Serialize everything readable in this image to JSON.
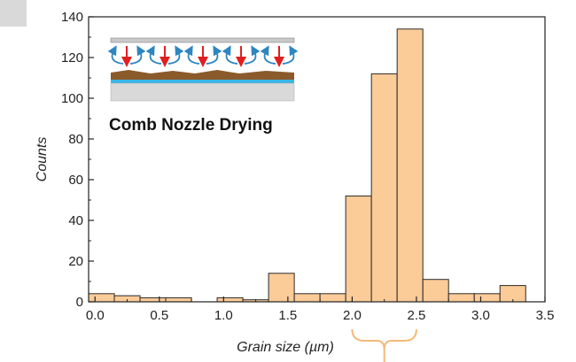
{
  "chart_data": {
    "type": "bar",
    "title": "",
    "xlabel": "Grain size (µm)",
    "ylabel": "Counts",
    "xlim": [
      -0.05,
      3.5
    ],
    "ylim": [
      0,
      140
    ],
    "bin_width": 0.2,
    "bin_starts": [
      -0.05,
      0.15,
      0.35,
      0.55,
      0.95,
      1.15,
      1.35,
      1.55,
      1.75,
      1.95,
      2.15,
      2.35,
      2.55,
      2.75,
      2.95,
      3.15
    ],
    "values": [
      4,
      3,
      2,
      2,
      2,
      1,
      14,
      4,
      4,
      52,
      112,
      134,
      11,
      4,
      4,
      8
    ],
    "x_ticks": [
      "0.0",
      "0.5",
      "1.0",
      "1.5",
      "2.0",
      "2.5",
      "3.0",
      "3.5"
    ],
    "x_tick_values": [
      0,
      0.5,
      1.0,
      1.5,
      2.0,
      2.5,
      3.0,
      3.5
    ],
    "y_ticks": [
      "0",
      "20",
      "40",
      "60",
      "80",
      "100",
      "120",
      "140"
    ],
    "y_tick_values": [
      0,
      20,
      40,
      60,
      80,
      100,
      120,
      140
    ],
    "bar_color": "#fbcb98",
    "bar_edge_color": "#2a2a2a",
    "brace_range": [
      2.0,
      2.5
    ],
    "brace_color": "#f5b97a"
  },
  "inset": {
    "title": "Comb Nozzle Drying",
    "colors": {
      "nozzle": "#c9c9c9",
      "air_arrow": "#2e86c1",
      "down_arrow": "#e02020",
      "film": "#8b5a2b",
      "interlayer": "#38b6e8",
      "substrate": "#d9d9d9"
    }
  }
}
